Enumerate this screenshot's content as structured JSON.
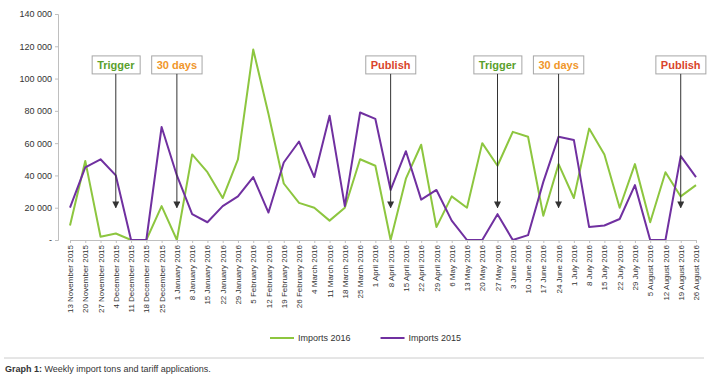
{
  "chart_data": {
    "type": "line",
    "caption": "Graph 1: Weekly import tons and tariff applications.",
    "categories": [
      "13 November 2015",
      "20 November 2015",
      "27 November 2015",
      "4 December 2015",
      "11 December 2015",
      "18 December 2015",
      "25 December 2015",
      "1 January 2016",
      "8 January 2016",
      "15 January 2016",
      "22 January 2016",
      "29 January 2016",
      "5 February 2016",
      "12 February 2016",
      "19 February 2016",
      "26 February 2016",
      "4 March 2016",
      "11 March 2016",
      "18 March 2016",
      "25 March 2016",
      "1 April 2016",
      "8 April 2016",
      "15 April 2016",
      "22 April 2016",
      "29 April 2016",
      "6 May 2016",
      "13 May 2016",
      "20 May 2016",
      "27 May 2016",
      "3 June 2016",
      "10 June 2016",
      "17 June 2016",
      "24 June 2016",
      "1 July 2016",
      "8 July 2016",
      "15 July 2016",
      "22 July 2016",
      "29 July 2016",
      "5 August 2016",
      "12 August 2016",
      "19 August 2016",
      "26 August 2016"
    ],
    "series": [
      {
        "name": "Imports 2016",
        "color": "#8dc63f",
        "values": [
          9000,
          49000,
          2000,
          4000,
          0,
          0,
          21000,
          0,
          53000,
          42000,
          26000,
          50000,
          118000,
          78000,
          35000,
          23000,
          20000,
          12000,
          20000,
          50000,
          46000,
          0,
          38000,
          59000,
          8000,
          27000,
          20000,
          60000,
          46000,
          67000,
          64000,
          15000,
          47000,
          26000,
          69000,
          53000,
          20000,
          47000,
          11000,
          42000,
          27000,
          34000
        ]
      },
      {
        "name": "Imports 2015",
        "color": "#7030a0",
        "values": [
          20000,
          45000,
          50000,
          40000,
          0,
          0,
          70000,
          40000,
          16000,
          11000,
          21000,
          27000,
          39000,
          17000,
          48000,
          61000,
          39000,
          77000,
          21000,
          79000,
          75000,
          31000,
          55000,
          25000,
          31000,
          12000,
          0,
          0,
          16000,
          0,
          3000,
          36000,
          64000,
          62000,
          8000,
          9000,
          13000,
          34000,
          0,
          0,
          52000,
          39000
        ]
      }
    ],
    "ylim": [
      0,
      140000
    ],
    "yticks": [
      {
        "value": 0,
        "label": "-"
      },
      {
        "value": 20000,
        "label": "20 000"
      },
      {
        "value": 40000,
        "label": "40 000"
      },
      {
        "value": 60000,
        "label": "60 000"
      },
      {
        "value": 80000,
        "label": "80 000"
      },
      {
        "value": 100000,
        "label": "100 000"
      },
      {
        "value": 120000,
        "label": "120 000"
      },
      {
        "value": 140000,
        "label": "140 000"
      }
    ],
    "legend": "bottom",
    "annotations": [
      {
        "text": "Trigger",
        "x": "4 December 2015",
        "y": 20000,
        "color": "#5aa02c"
      },
      {
        "text": "30 days",
        "x": "1 January 2016",
        "y": 20000,
        "color": "#f0962a"
      },
      {
        "text": "Publish",
        "x": "8 April 2016",
        "y": 20000,
        "color": "#d9452b"
      },
      {
        "text": "Trigger",
        "x": "27 May 2016",
        "y": 20000,
        "color": "#5aa02c"
      },
      {
        "text": "30 days",
        "x": "24 June 2016",
        "y": 20000,
        "color": "#f0962a"
      },
      {
        "text": "Publish",
        "x": "19 August 2016",
        "y": 20000,
        "color": "#d9452b"
      }
    ]
  }
}
